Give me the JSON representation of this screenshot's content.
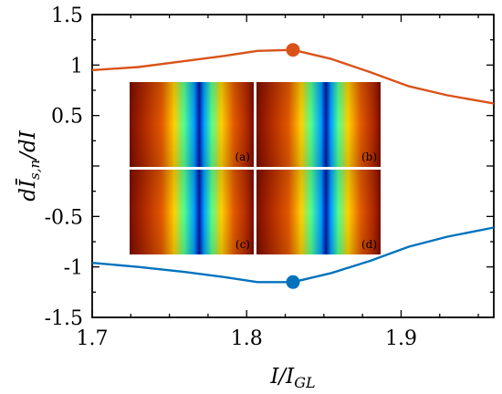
{
  "chart_data": {
    "type": "line",
    "xlabel": "I/I_GL",
    "ylabel": "dĪ_s,n/dI",
    "xlim": [
      1.7,
      1.96
    ],
    "ylim": [
      -1.5,
      1.5
    ],
    "x_ticks": [
      "1.7",
      "1.8",
      "1.9"
    ],
    "y_ticks": [
      "1.5",
      "1",
      "0.5",
      "-0.5",
      "-1",
      "-1.5"
    ],
    "grid": false,
    "legend": "none",
    "series": [
      {
        "color": "#d95319",
        "x": [
          1.7,
          1.73,
          1.76,
          1.785,
          1.807,
          1.83,
          1.855,
          1.88,
          1.905,
          1.93,
          1.96
        ],
        "y": [
          0.95,
          0.98,
          1.04,
          1.09,
          1.14,
          1.15,
          1.06,
          0.93,
          0.79,
          0.7,
          0.62
        ]
      },
      {
        "color": "#0072bd",
        "x": [
          1.7,
          1.73,
          1.76,
          1.785,
          1.807,
          1.83,
          1.855,
          1.88,
          1.905,
          1.93,
          1.96
        ],
        "y": [
          -0.96,
          -1.0,
          -1.05,
          -1.1,
          -1.15,
          -1.15,
          -1.06,
          -0.94,
          -0.8,
          -0.7,
          -0.61
        ]
      }
    ],
    "markers": [
      {
        "series": 0,
        "x": 1.83,
        "y": 1.15,
        "color": "#d95319"
      },
      {
        "series": 1,
        "x": 1.83,
        "y": -1.15,
        "color": "#0072bd"
      }
    ],
    "inset": {
      "colormap": "jet",
      "panels": [
        {
          "label": "(a)"
        },
        {
          "label": "(b)"
        },
        {
          "label": "(c)"
        },
        {
          "label": "(d)"
        }
      ]
    }
  }
}
